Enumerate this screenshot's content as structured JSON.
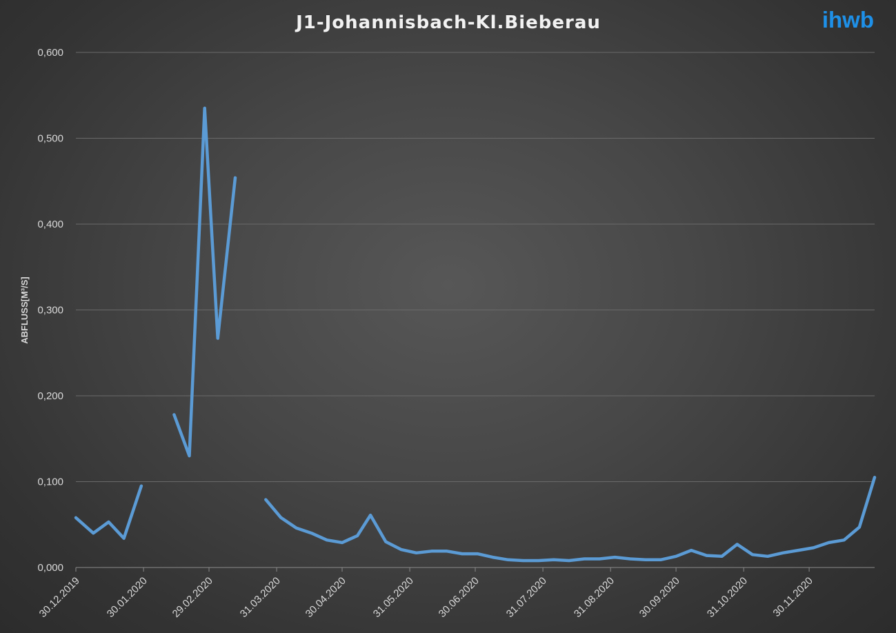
{
  "brand": {
    "logo_text": "ihwb",
    "color": "#1e90e8"
  },
  "chart_data": {
    "type": "line",
    "title": "J1-Johannisbach-Kl.Bieberau",
    "ylabel": "ABFLUSS[M³/S]",
    "xlabel": "",
    "ylim": [
      0,
      0.6
    ],
    "yticks": [
      0,
      0.1,
      0.2,
      0.3,
      0.4,
      0.5,
      0.6
    ],
    "ytick_labels": [
      "0,000",
      "0,100",
      "0,200",
      "0,300",
      "0,400",
      "0,500",
      "0,600"
    ],
    "xlim": [
      "2019-12-30",
      "2020-12-30"
    ],
    "xticks": [
      "2019-12-30",
      "2020-01-30",
      "2020-02-29",
      "2020-03-31",
      "2020-04-30",
      "2020-05-31",
      "2020-06-30",
      "2020-07-31",
      "2020-08-31",
      "2020-09-30",
      "2020-10-31",
      "2020-11-30"
    ],
    "xtick_labels": [
      "30.12.2019",
      "30.01.2020",
      "29.02.2020",
      "31.03.2020",
      "30.04.2020",
      "31.05.2020",
      "30.06.2020",
      "31.07.2020",
      "31.08.2020",
      "30.09.2020",
      "31.10.2020",
      "30.11.2020"
    ],
    "grid": true,
    "series_color": "#5b9bd5",
    "series": [
      {
        "points": [
          [
            "2019-12-30",
            0.058
          ],
          [
            "2020-01-07",
            0.04
          ],
          [
            "2020-01-14",
            0.053
          ],
          [
            "2020-01-21",
            0.034
          ],
          [
            "2020-01-29",
            0.095
          ],
          [
            "2020-02-12",
            null
          ],
          [
            "2020-02-13",
            0.178
          ],
          [
            "2020-02-20",
            0.13
          ],
          [
            "2020-02-27",
            0.535
          ],
          [
            "2020-03-04",
            0.267
          ],
          [
            "2020-03-12",
            0.454
          ],
          [
            "2020-03-20",
            null
          ],
          [
            "2020-03-26",
            0.079
          ],
          [
            "2020-04-02",
            0.058
          ],
          [
            "2020-04-09",
            0.046
          ],
          [
            "2020-04-16",
            0.04
          ],
          [
            "2020-04-23",
            0.032
          ],
          [
            "2020-04-30",
            0.029
          ],
          [
            "2020-05-07",
            0.037
          ],
          [
            "2020-05-13",
            0.061
          ],
          [
            "2020-05-20",
            0.03
          ],
          [
            "2020-05-27",
            0.021
          ],
          [
            "2020-06-03",
            0.017
          ],
          [
            "2020-06-10",
            0.019
          ],
          [
            "2020-06-17",
            0.019
          ],
          [
            "2020-06-24",
            0.016
          ],
          [
            "2020-07-01",
            0.016
          ],
          [
            "2020-07-08",
            0.012
          ],
          [
            "2020-07-15",
            0.009
          ],
          [
            "2020-07-22",
            0.008
          ],
          [
            "2020-07-29",
            0.008
          ],
          [
            "2020-08-05",
            0.009
          ],
          [
            "2020-08-12",
            0.008
          ],
          [
            "2020-08-19",
            0.01
          ],
          [
            "2020-08-26",
            0.01
          ],
          [
            "2020-09-02",
            0.012
          ],
          [
            "2020-09-09",
            0.01
          ],
          [
            "2020-09-16",
            0.009
          ],
          [
            "2020-09-23",
            0.009
          ],
          [
            "2020-09-30",
            0.013
          ],
          [
            "2020-10-07",
            0.02
          ],
          [
            "2020-10-14",
            0.014
          ],
          [
            "2020-10-21",
            0.013
          ],
          [
            "2020-10-28",
            0.027
          ],
          [
            "2020-11-04",
            0.015
          ],
          [
            "2020-11-11",
            0.013
          ],
          [
            "2020-11-18",
            0.017
          ],
          [
            "2020-11-25",
            0.02
          ],
          [
            "2020-12-02",
            0.023
          ],
          [
            "2020-12-09",
            0.029
          ],
          [
            "2020-12-16",
            0.032
          ],
          [
            "2020-12-23",
            0.047
          ],
          [
            "2020-12-30",
            0.105
          ]
        ]
      }
    ]
  }
}
